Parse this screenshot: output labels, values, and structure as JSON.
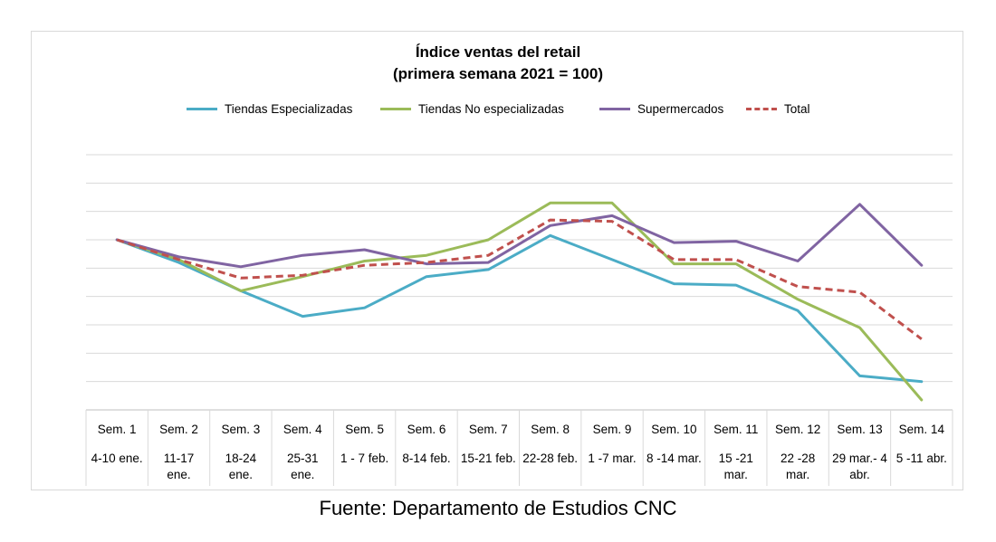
{
  "title_line1": "Índice ventas del retail",
  "title_line2": "(primera semana 2021 = 100)",
  "source": "Fuente: Departamento de Estudios CNC",
  "chart_data": {
    "type": "line",
    "title": "Índice ventas del retail (primera semana 2021 = 100)",
    "xlabel": "",
    "ylabel": "",
    "ylim": [
      40,
      130
    ],
    "grid": true,
    "legend": "top",
    "categories": [
      {
        "week": "Sem. 1",
        "dates": [
          "4-10 ene."
        ]
      },
      {
        "week": "Sem. 2",
        "dates": [
          "11-17",
          "ene."
        ]
      },
      {
        "week": "Sem. 3",
        "dates": [
          "18-24",
          "ene."
        ]
      },
      {
        "week": "Sem. 4",
        "dates": [
          "25-31",
          "ene."
        ]
      },
      {
        "week": "Sem. 5",
        "dates": [
          "1 - 7 feb."
        ]
      },
      {
        "week": "Sem. 6",
        "dates": [
          "8-14 feb."
        ]
      },
      {
        "week": "Sem. 7",
        "dates": [
          "15-21 feb."
        ]
      },
      {
        "week": "Sem. 8",
        "dates": [
          "22-28 feb."
        ]
      },
      {
        "week": "Sem. 9",
        "dates": [
          "1 -7 mar."
        ]
      },
      {
        "week": "Sem. 10",
        "dates": [
          "8 -14 mar."
        ]
      },
      {
        "week": "Sem. 11",
        "dates": [
          "15 -21",
          "mar."
        ]
      },
      {
        "week": "Sem. 12",
        "dates": [
          "22 -28",
          "mar."
        ]
      },
      {
        "week": "Sem. 13",
        "dates": [
          "29 mar.- 4",
          "abr."
        ]
      },
      {
        "week": "Sem. 14",
        "dates": [
          "5 -11 abr."
        ]
      }
    ],
    "series": [
      {
        "name": "Tiendas Especializadas",
        "color": "#4bacc6",
        "dash": false,
        "values": [
          100,
          92,
          82,
          73,
          76,
          87,
          89.5,
          101.5,
          93,
          84.5,
          84,
          75,
          52,
          50
        ]
      },
      {
        "name": "Tiendas No especializadas",
        "color": "#9bbb59",
        "dash": false,
        "values": [
          100,
          93,
          82,
          87,
          92.5,
          94.5,
          100,
          113,
          113,
          91.5,
          91.5,
          79,
          69,
          43.5
        ]
      },
      {
        "name": "Supermercados",
        "color": "#8064a2",
        "dash": false,
        "values": [
          100,
          94,
          90.5,
          94.5,
          96.5,
          91.5,
          92,
          105,
          108.5,
          99,
          99.5,
          92.5,
          112.5,
          91
        ]
      },
      {
        "name": "Total",
        "color": "#c0504d",
        "dash": true,
        "values": [
          100,
          93,
          86.5,
          87.5,
          91,
          92,
          94.5,
          107,
          106.5,
          93,
          93,
          83.5,
          81.5,
          65
        ]
      }
    ]
  }
}
